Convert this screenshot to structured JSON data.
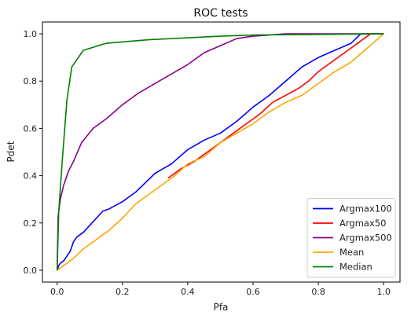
{
  "chart_data": {
    "type": "line",
    "title": "ROC tests",
    "xlabel": "Pfa",
    "ylabel": "Pdet",
    "xlim": [
      -0.045,
      1.05
    ],
    "ylim": [
      -0.05,
      1.05
    ],
    "xticks": [
      0.0,
      0.2,
      0.4,
      0.6,
      0.8,
      1.0
    ],
    "yticks": [
      0.0,
      0.2,
      0.4,
      0.6,
      0.8,
      1.0
    ],
    "xtick_labels": [
      "0.0",
      "0.2",
      "0.4",
      "0.6",
      "0.8",
      "1.0"
    ],
    "ytick_labels": [
      "0.0",
      "0.2",
      "0.4",
      "0.6",
      "0.8",
      "1.0"
    ],
    "grid": false,
    "legend_position": "lower-right",
    "series": [
      {
        "name": "Argmax100",
        "color": "#0000ff",
        "points": [
          [
            0.0,
            0.0
          ],
          [
            0.005,
            0.02
          ],
          [
            0.01,
            0.03
          ],
          [
            0.02,
            0.04
          ],
          [
            0.03,
            0.06
          ],
          [
            0.04,
            0.08
          ],
          [
            0.05,
            0.12
          ],
          [
            0.06,
            0.14
          ],
          [
            0.08,
            0.16
          ],
          [
            0.1,
            0.19
          ],
          [
            0.12,
            0.22
          ],
          [
            0.14,
            0.25
          ],
          [
            0.16,
            0.26
          ],
          [
            0.2,
            0.29
          ],
          [
            0.24,
            0.33
          ],
          [
            0.27,
            0.37
          ],
          [
            0.3,
            0.41
          ],
          [
            0.35,
            0.45
          ],
          [
            0.4,
            0.51
          ],
          [
            0.45,
            0.55
          ],
          [
            0.5,
            0.58
          ],
          [
            0.55,
            0.63
          ],
          [
            0.6,
            0.69
          ],
          [
            0.65,
            0.74
          ],
          [
            0.7,
            0.8
          ],
          [
            0.75,
            0.86
          ],
          [
            0.8,
            0.9
          ],
          [
            0.85,
            0.93
          ],
          [
            0.9,
            0.96
          ],
          [
            0.93,
            1.0
          ],
          [
            1.0,
            1.0
          ]
        ]
      },
      {
        "name": "Argmax50",
        "color": "#ff0000",
        "points": [
          [
            0.34,
            0.39
          ],
          [
            0.38,
            0.43
          ],
          [
            0.42,
            0.46
          ],
          [
            0.46,
            0.5
          ],
          [
            0.5,
            0.54
          ],
          [
            0.54,
            0.58
          ],
          [
            0.58,
            0.62
          ],
          [
            0.62,
            0.66
          ],
          [
            0.66,
            0.71
          ],
          [
            0.7,
            0.74
          ],
          [
            0.74,
            0.77
          ],
          [
            0.77,
            0.8
          ],
          [
            0.8,
            0.84
          ],
          [
            0.83,
            0.87
          ],
          [
            0.86,
            0.9
          ],
          [
            0.9,
            0.94
          ],
          [
            0.93,
            0.97
          ],
          [
            0.96,
            1.0
          ],
          [
            1.0,
            1.0
          ]
        ]
      },
      {
        "name": "Argmax500",
        "color": "#8b008b",
        "points": [
          [
            0.0,
            0.0
          ],
          [
            0.003,
            0.23
          ],
          [
            0.01,
            0.3
          ],
          [
            0.02,
            0.36
          ],
          [
            0.035,
            0.42
          ],
          [
            0.05,
            0.46
          ],
          [
            0.075,
            0.54
          ],
          [
            0.11,
            0.6
          ],
          [
            0.15,
            0.64
          ],
          [
            0.2,
            0.7
          ],
          [
            0.25,
            0.75
          ],
          [
            0.3,
            0.79
          ],
          [
            0.35,
            0.83
          ],
          [
            0.4,
            0.87
          ],
          [
            0.45,
            0.92
          ],
          [
            0.5,
            0.95
          ],
          [
            0.55,
            0.98
          ],
          [
            0.6,
            0.99
          ],
          [
            0.7,
            1.0
          ],
          [
            1.0,
            1.0
          ]
        ]
      },
      {
        "name": "Mean",
        "color": "#ffa500",
        "points": [
          [
            0.0,
            0.0
          ],
          [
            0.02,
            0.02
          ],
          [
            0.05,
            0.05
          ],
          [
            0.08,
            0.09
          ],
          [
            0.12,
            0.13
          ],
          [
            0.16,
            0.17
          ],
          [
            0.2,
            0.22
          ],
          [
            0.24,
            0.28
          ],
          [
            0.28,
            0.32
          ],
          [
            0.32,
            0.36
          ],
          [
            0.36,
            0.4
          ],
          [
            0.4,
            0.45
          ],
          [
            0.45,
            0.48
          ],
          [
            0.5,
            0.54
          ],
          [
            0.55,
            0.58
          ],
          [
            0.6,
            0.62
          ],
          [
            0.65,
            0.67
          ],
          [
            0.7,
            0.71
          ],
          [
            0.75,
            0.74
          ],
          [
            0.8,
            0.79
          ],
          [
            0.85,
            0.84
          ],
          [
            0.9,
            0.88
          ],
          [
            0.95,
            0.94
          ],
          [
            1.0,
            1.0
          ]
        ]
      },
      {
        "name": "Median",
        "color": "#008000",
        "points": [
          [
            0.0,
            0.0
          ],
          [
            0.005,
            0.25
          ],
          [
            0.015,
            0.45
          ],
          [
            0.03,
            0.72
          ],
          [
            0.045,
            0.86
          ],
          [
            0.08,
            0.93
          ],
          [
            0.15,
            0.96
          ],
          [
            0.28,
            0.975
          ],
          [
            0.5,
            0.99
          ],
          [
            0.6,
            0.995
          ],
          [
            1.0,
            1.0
          ]
        ]
      }
    ]
  }
}
